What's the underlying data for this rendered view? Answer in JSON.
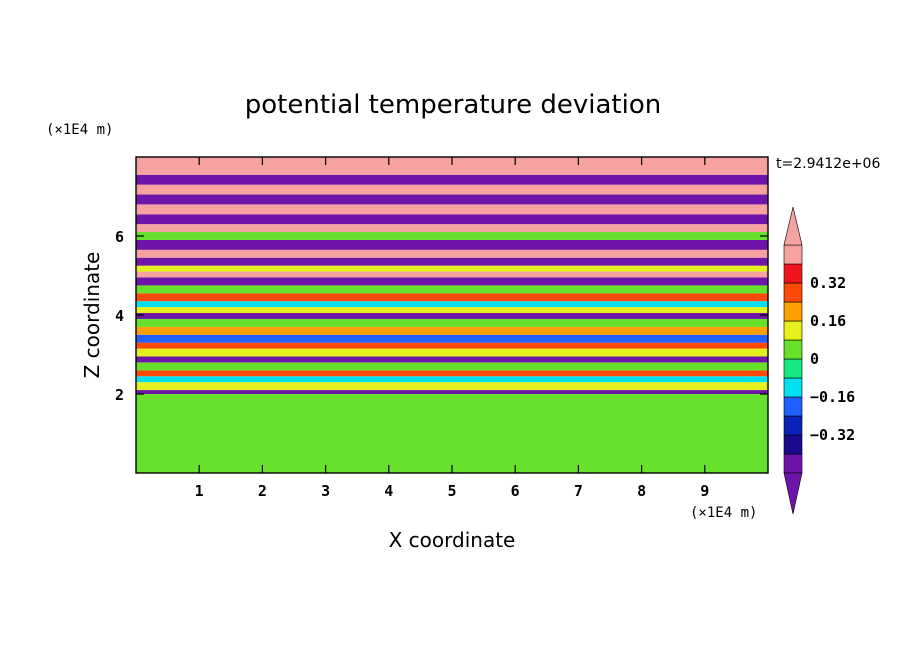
{
  "chart_data": {
    "type": "heatmap",
    "title": "potential temperature deviation",
    "xlabel": "X coordinate",
    "ylabel": "Z coordinate",
    "x_unit": "(×1E4 m)",
    "y_unit": "(×1E4 m)",
    "time_label": "t=2.9412e+06",
    "xlim": [
      0,
      10
    ],
    "ylim": [
      0,
      8
    ],
    "x_ticks": [
      1,
      2,
      3,
      4,
      5,
      6,
      7,
      8,
      9
    ],
    "x_tick_labels": [
      "1",
      "2",
      "3",
      "4",
      "5",
      "6",
      "7",
      "8",
      "9"
    ],
    "y_ticks": [
      2,
      4,
      6
    ],
    "y_tick_labels": [
      "2",
      "4",
      "6"
    ],
    "grid": false,
    "colorbar": {
      "placement": "right",
      "levels": [
        -0.48,
        -0.4,
        -0.32,
        -0.24,
        -0.16,
        -0.08,
        0,
        0.08,
        0.16,
        0.24,
        0.32,
        0.4,
        0.48
      ],
      "colors": [
        "#6f14a8",
        "#1a0a8c",
        "#0a22b8",
        "#2060ff",
        "#00e0f0",
        "#14e882",
        "#66e02a",
        "#e6f01e",
        "#ffa000",
        "#ff4a0a",
        "#f0141e",
        "#f5a2a0"
      ],
      "under_color": "#6f14a8",
      "over_color": "#f5a2a0",
      "labeled_values": [
        0.32,
        0.16,
        0,
        -0.16,
        -0.32
      ],
      "labels": [
        "0.32",
        "0.16",
        "0",
        "−0.16",
        "−0.32"
      ]
    },
    "bands": [
      {
        "z0": 0.0,
        "z1": 2.0,
        "value": 0.02
      },
      {
        "z0": 2.0,
        "z1": 2.1,
        "value": -0.45
      },
      {
        "z0": 2.1,
        "z1": 2.3,
        "value": 0.1
      },
      {
        "z0": 2.3,
        "z1": 2.45,
        "value": -0.1
      },
      {
        "z0": 2.45,
        "z1": 2.6,
        "value": 0.25
      },
      {
        "z0": 2.6,
        "z1": 2.8,
        "value": 0.05
      },
      {
        "z0": 2.8,
        "z1": 2.95,
        "value": -0.45
      },
      {
        "z0": 2.95,
        "z1": 3.15,
        "value": 0.1
      },
      {
        "z0": 3.15,
        "z1": 3.3,
        "value": 0.3
      },
      {
        "z0": 3.3,
        "z1": 3.5,
        "value": -0.2
      },
      {
        "z0": 3.5,
        "z1": 3.7,
        "value": 0.2
      },
      {
        "z0": 3.7,
        "z1": 3.9,
        "value": 0.02
      },
      {
        "z0": 3.9,
        "z1": 4.05,
        "value": -0.45
      },
      {
        "z0": 4.05,
        "z1": 4.2,
        "value": 0.15
      },
      {
        "z0": 4.2,
        "z1": 4.35,
        "value": -0.1
      },
      {
        "z0": 4.35,
        "z1": 4.55,
        "value": 0.3
      },
      {
        "z0": 4.55,
        "z1": 4.75,
        "value": 0.05
      },
      {
        "z0": 4.75,
        "z1": 4.95,
        "value": -0.45
      },
      {
        "z0": 4.95,
        "z1": 5.1,
        "value": 0.45
      },
      {
        "z0": 5.1,
        "z1": 5.25,
        "value": 0.15
      },
      {
        "z0": 5.25,
        "z1": 5.45,
        "value": -0.45
      },
      {
        "z0": 5.45,
        "z1": 5.65,
        "value": 0.45
      },
      {
        "z0": 5.65,
        "z1": 5.9,
        "value": -0.45
      },
      {
        "z0": 5.9,
        "z1": 6.1,
        "value": 0.05
      },
      {
        "z0": 6.1,
        "z1": 6.3,
        "value": 0.45
      },
      {
        "z0": 6.3,
        "z1": 6.55,
        "value": -0.45
      },
      {
        "z0": 6.55,
        "z1": 6.8,
        "value": 0.45
      },
      {
        "z0": 6.8,
        "z1": 7.05,
        "value": -0.45
      },
      {
        "z0": 7.05,
        "z1": 7.3,
        "value": 0.45
      },
      {
        "z0": 7.3,
        "z1": 7.55,
        "value": -0.45
      },
      {
        "z0": 7.55,
        "z1": 8.0,
        "value": 0.45
      }
    ]
  }
}
